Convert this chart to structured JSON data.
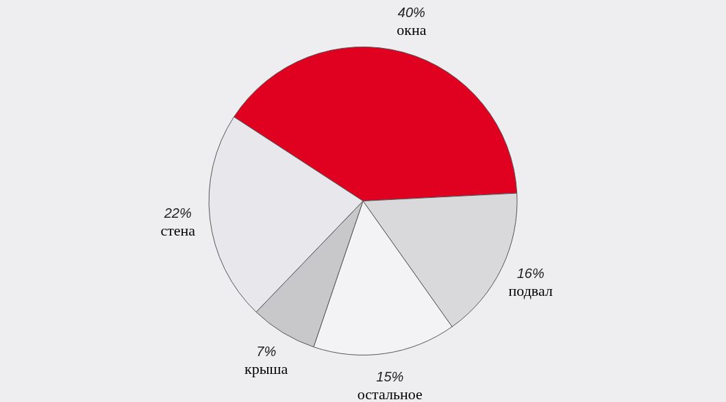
{
  "chart_data": {
    "type": "pie",
    "categories": [
      "окна",
      "подвал",
      "остальное",
      "крыша",
      "стена"
    ],
    "values": [
      40,
      16,
      15,
      7,
      22
    ],
    "value_labels": [
      "40%",
      "16%",
      "15%",
      "7%",
      "22%"
    ],
    "colors": [
      "#e00020",
      "#d9d9dc",
      "#f3f3f5",
      "#c8c8ca",
      "#e8e8ec"
    ],
    "legend": false
  }
}
